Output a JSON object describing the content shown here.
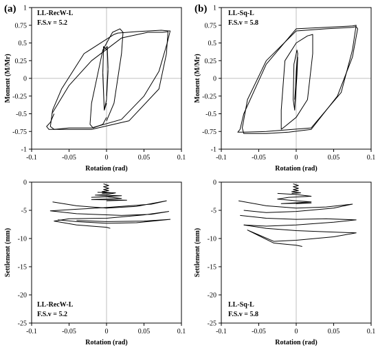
{
  "panel_letters": [
    "(a)",
    "(b)"
  ],
  "chart_data": [
    {
      "type": "line",
      "id": "moment-recw",
      "annotation": [
        "LL-RecW-L",
        "F.S.v = 5.2"
      ],
      "xlabel": "Rotation  (rad)",
      "ylabel": "Moment  (M/Mr)",
      "xlim": [
        -0.1,
        0.1
      ],
      "ylim": [
        -1,
        1
      ],
      "xticks": [
        "-0.1",
        "-0.05",
        "0",
        "0.05",
        "0.1"
      ],
      "yticks": [
        "1",
        "0.75",
        "0.5",
        "0.25",
        "0",
        "-0.25",
        "-0.5",
        "-0.75",
        "-1"
      ],
      "series": [
        {
          "x": [
            0,
            0.002,
            0.001,
            -0.004,
            -0.005,
            -0.003,
            0,
            0.002,
            0.001,
            -0.004,
            -0.005,
            -0.003,
            0
          ],
          "y": [
            -0.25,
            0.15,
            0.45,
            0.4,
            0.1,
            -0.45,
            -0.3,
            0.1,
            0.4,
            0.45,
            0.05,
            -0.45,
            -0.35
          ]
        },
        {
          "x": [
            0,
            0.01,
            0.02,
            0.022,
            0.018,
            0.008,
            -0.005,
            -0.02,
            -0.022,
            -0.018,
            -0.005,
            0
          ],
          "y": [
            -0.6,
            -0.35,
            0.35,
            0.65,
            0.7,
            0.65,
            0.4,
            -0.35,
            -0.65,
            -0.7,
            -0.65,
            -0.55
          ]
        },
        {
          "x": [
            -0.07,
            -0.075,
            -0.08,
            -0.077,
            -0.06,
            -0.02,
            0.03,
            0.07,
            0.08,
            0.082,
            0.075,
            0.055,
            0.02,
            -0.02,
            -0.05,
            -0.07,
            -0.073
          ],
          "y": [
            -0.5,
            -0.62,
            -0.68,
            -0.72,
            -0.72,
            -0.72,
            -0.6,
            -0.15,
            0.35,
            0.66,
            0.65,
            0.65,
            0.57,
            0.25,
            -0.1,
            -0.45,
            -0.5
          ]
        },
        {
          "x": [
            0.083,
            0.073,
            0.04,
            0.015,
            0.01,
            -0.03,
            -0.06,
            -0.072,
            -0.075,
            -0.07,
            -0.05,
            -0.02,
            0.02,
            0.05,
            0.07,
            0.081,
            0.085,
            0.083
          ],
          "y": [
            0.67,
            0.68,
            0.66,
            0.64,
            0.62,
            0.35,
            -0.15,
            -0.45,
            -0.68,
            -0.72,
            -0.7,
            -0.7,
            -0.58,
            -0.25,
            0.1,
            0.5,
            0.67,
            0.67
          ]
        }
      ]
    },
    {
      "type": "line",
      "id": "moment-sq",
      "annotation": [
        "LL-Sq-L",
        "F.S.v = 5.8"
      ],
      "xlabel": "Rotation  (rad)",
      "ylabel": "Moment  (M/Mr)",
      "xlim": [
        -0.1,
        0.1
      ],
      "ylim": [
        -1,
        1
      ],
      "xticks": [
        "-0.1",
        "-0.05",
        "0",
        "0.05",
        "0.1"
      ],
      "yticks": [
        "1",
        "0.75",
        "0.5",
        "0.25",
        "0",
        "-0.25",
        "-0.5",
        "-0.75",
        "-1"
      ],
      "series": [
        {
          "x": [
            -0.002,
            0,
            0.002,
            0.001,
            -0.003,
            -0.004,
            -0.002,
            0.001,
            0.002,
            -0.002
          ],
          "y": [
            -0.45,
            0.1,
            0.35,
            0.4,
            0.2,
            -0.3,
            -0.45,
            0.05,
            0.3,
            -0.3
          ]
        },
        {
          "x": [
            -0.02,
            -0.02,
            -0.015,
            0,
            0.015,
            0.022,
            0.022,
            0.015,
            0,
            -0.015,
            -0.02
          ],
          "y": [
            -0.72,
            -0.45,
            0.25,
            0.5,
            0.6,
            0.62,
            0.35,
            -0.3,
            -0.55,
            -0.68,
            -0.72
          ]
        },
        {
          "x": [
            -0.075,
            -0.078,
            -0.07,
            -0.04,
            0.02,
            0.06,
            0.075,
            0.08,
            0.075,
            0.04,
            0,
            -0.04,
            -0.07,
            -0.075
          ],
          "y": [
            -0.72,
            -0.76,
            -0.76,
            -0.75,
            -0.7,
            -0.2,
            0.4,
            0.75,
            0.74,
            0.72,
            0.7,
            0.2,
            -0.5,
            -0.72
          ]
        },
        {
          "x": [
            0.08,
            0.075,
            0.04,
            0,
            -0.04,
            -0.065,
            -0.072,
            -0.07,
            -0.04,
            -0.01,
            0.02,
            0.055,
            0.075,
            0.082,
            0.08
          ],
          "y": [
            0.73,
            0.72,
            0.7,
            0.67,
            0.25,
            -0.3,
            -0.7,
            -0.78,
            -0.78,
            -0.76,
            -0.72,
            -0.25,
            0.3,
            0.7,
            0.73
          ]
        }
      ]
    },
    {
      "type": "line",
      "id": "settlement-recw",
      "annotation": [
        "LL-RecW-L",
        "F.S.v = 5.2"
      ],
      "xlabel": "Rotation  (rad)",
      "ylabel": "Settlement  (mm)",
      "xlim": [
        -0.1,
        0.1
      ],
      "ylim": [
        -25,
        0
      ],
      "xticks": [
        "-0.1",
        "-0.05",
        "0",
        "0.05",
        "0.1"
      ],
      "yticks": [
        "0",
        "-5",
        "-10",
        "-15",
        "-20",
        "-25"
      ],
      "series": [
        {
          "x": [
            -0.004,
            0.003,
            -0.004,
            0.003,
            -0.004,
            0.003,
            -0.006,
            0.006,
            -0.006
          ],
          "y": [
            -0.3,
            -0.6,
            -0.8,
            -1.1,
            -1.3,
            -1.5,
            -1.7,
            -1.9,
            -2.0
          ]
        },
        {
          "x": [
            -0.012,
            0.012,
            0,
            -0.015,
            0.02,
            -0.02,
            0,
            0.02,
            -0.02,
            0.027,
            0
          ],
          "y": [
            -1.8,
            -1.9,
            -2.2,
            -2.3,
            -2.4,
            -2.7,
            -2.6,
            -2.9,
            -3.1,
            -3.2,
            -3.3
          ]
        },
        {
          "x": [
            -0.072,
            -0.04,
            0,
            0.04,
            0.08,
            0.06,
            0,
            -0.04,
            -0.075,
            -0.04,
            0.02,
            0.06,
            0.083,
            0.05,
            0,
            -0.05,
            -0.07,
            -0.04,
            0,
            0.005
          ],
          "y": [
            -3.5,
            -4.2,
            -4.6,
            -4.3,
            -3.3,
            -3.9,
            -4.5,
            -4.8,
            -5.1,
            -5.6,
            -5.9,
            -5.7,
            -5.2,
            -5.8,
            -6.4,
            -6.5,
            -6.9,
            -7.6,
            -8.0,
            -8.2
          ]
        },
        {
          "x": [
            -0.065,
            -0.04,
            0,
            0.04,
            0.085,
            0.05,
            0,
            -0.04
          ],
          "y": [
            -6.7,
            -7.0,
            -7.3,
            -7.2,
            -6.6,
            -6.9,
            -7.0,
            -6.8
          ]
        }
      ]
    },
    {
      "type": "line",
      "id": "settlement-sq",
      "annotation": [
        "LL-Sq-L",
        "F.S.v = 5.8"
      ],
      "xlabel": "Rotation  (rad)",
      "ylabel": "Settlement  (mm)",
      "xlim": [
        -0.1,
        0.1
      ],
      "ylim": [
        -25,
        0
      ],
      "xticks": [
        "-0.1",
        "-0.05",
        "0",
        "0.05",
        "0.1"
      ],
      "yticks": [
        "0",
        "-5",
        "-10",
        "-15",
        "-20",
        "-25"
      ],
      "series": [
        {
          "x": [
            -0.004,
            0.003,
            -0.004,
            0.003,
            -0.004,
            0.003,
            -0.006,
            0.006,
            -0.006
          ],
          "y": [
            -0.3,
            -0.6,
            -0.8,
            -1.1,
            -1.3,
            -1.5,
            -1.7,
            -1.9,
            -2.0
          ]
        },
        {
          "x": [
            -0.025,
            0,
            0.02,
            -0.01,
            -0.025,
            0,
            0.02,
            -0.02,
            0.02,
            0
          ],
          "y": [
            -2.0,
            -2.2,
            -2.5,
            -2.7,
            -3.0,
            -3.3,
            -3.5,
            -3.8,
            -3.7,
            -3.8
          ]
        },
        {
          "x": [
            -0.077,
            -0.04,
            0,
            0.04,
            0.075,
            0.05,
            0,
            -0.04,
            -0.07
          ],
          "y": [
            -3.3,
            -4.2,
            -4.6,
            -4.4,
            -3.9,
            -4.6,
            -5.2,
            -5.4,
            -5.0
          ]
        },
        {
          "x": [
            -0.075,
            -0.04,
            0,
            0.04,
            0.08,
            0.05,
            0,
            -0.04,
            -0.07
          ],
          "y": [
            -5.9,
            -6.4,
            -6.6,
            -6.5,
            -6.7,
            -7.1,
            -7.6,
            -7.8,
            -7.6
          ]
        },
        {
          "x": [
            -0.07,
            -0.04,
            0,
            0.04,
            0.08,
            0.05,
            0,
            -0.03,
            -0.065,
            -0.03,
            0,
            0.008
          ],
          "y": [
            -7.6,
            -8.2,
            -8.6,
            -8.8,
            -9.0,
            -9.7,
            -10.3,
            -10.5,
            -8.5,
            -10.8,
            -11.2,
            -11.4
          ]
        }
      ]
    }
  ]
}
